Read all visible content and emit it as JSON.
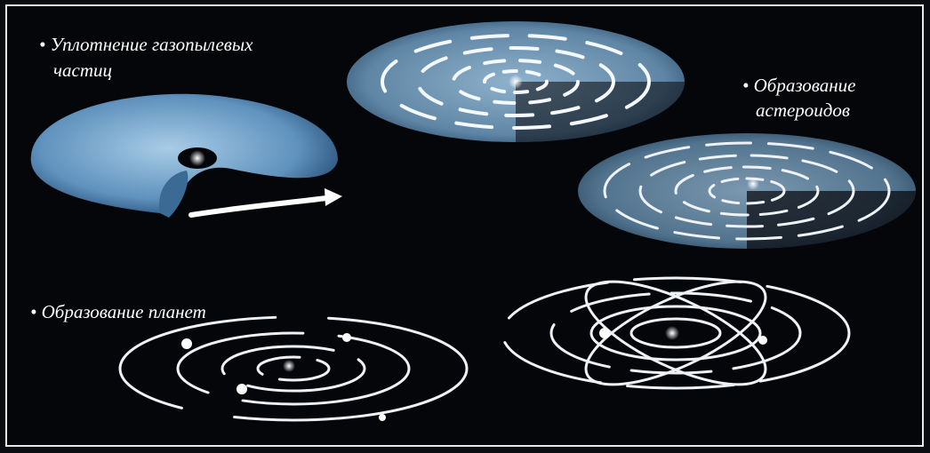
{
  "labels": [
    {
      "lines": [
        "• Уплотнение газопылевых",
        "частиц"
      ]
    },
    {
      "lines": [
        "• Образование",
        "астероидов"
      ]
    },
    {
      "lines": [
        "• Образование планет"
      ]
    }
  ]
}
